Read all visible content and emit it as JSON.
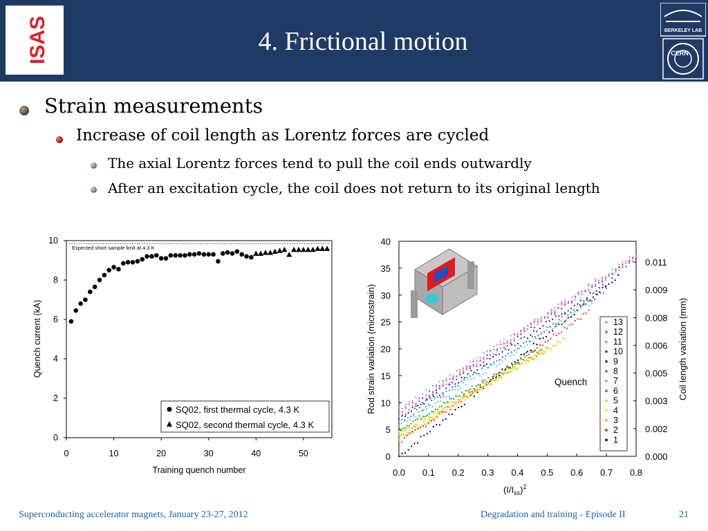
{
  "slide": {
    "title": "4. Frictional motion",
    "logo_left_text": "ISAS",
    "logo_top_text": "BERKELEY LAB",
    "logo_bottom_text": "CERN"
  },
  "bullets": {
    "l1": "Strain measurements",
    "l2": "Increase of coil length as Lorentz forces are cycled",
    "l3a": "The axial Lorentz forces tend to pull the coil ends outwardly",
    "l3b": "After an excitation cycle, the coil does not return to its original length"
  },
  "footer": {
    "left": "Superconducting accelerator magnets, January 23-27, 2012",
    "middle": "Degradation and training - Episode II",
    "page": "21"
  },
  "chart_data": [
    {
      "type": "scatter",
      "xlabel": "Training quench number",
      "ylabel": "Quench current (kA)",
      "xlim": [
        0,
        56
      ],
      "ylim": [
        0,
        10
      ],
      "xticks": [
        "0",
        "10",
        "20",
        "30",
        "40",
        "50"
      ],
      "yticks": [
        "0",
        "2",
        "4",
        "6",
        "8",
        "10"
      ],
      "reference_line": {
        "y": 9.85,
        "label": "Expected short sample limit at 4.3 K"
      },
      "legend_position": "bottom-right",
      "series": [
        {
          "name": "SQ02, first thermal cycle, 4.3 K",
          "marker": "circle",
          "x": [
            1,
            2,
            3,
            4,
            5,
            6,
            7,
            8,
            9,
            10,
            11,
            12,
            13,
            14,
            15,
            16,
            17,
            18,
            19,
            20,
            21,
            22,
            23,
            24,
            25,
            26,
            27,
            28,
            29,
            30,
            31,
            32,
            33,
            34,
            35,
            36,
            37,
            38,
            39
          ],
          "y": [
            5.9,
            6.45,
            6.8,
            7.0,
            7.4,
            7.65,
            8.0,
            8.25,
            8.5,
            8.65,
            8.55,
            8.85,
            8.9,
            8.9,
            8.95,
            9.05,
            9.2,
            9.2,
            9.25,
            9.1,
            9.1,
            9.25,
            9.25,
            9.25,
            9.25,
            9.3,
            9.3,
            9.35,
            9.3,
            9.3,
            9.3,
            8.95,
            9.35,
            9.4,
            9.35,
            9.45,
            9.3,
            9.2,
            9.15
          ]
        },
        {
          "name": "SQ02, second thermal cycle, 4.3 K",
          "marker": "triangle",
          "x": [
            40,
            41,
            42,
            43,
            44,
            45,
            46,
            47,
            48,
            49,
            50,
            51,
            52,
            53,
            54,
            55
          ],
          "y": [
            9.35,
            9.35,
            9.4,
            9.4,
            9.45,
            9.5,
            9.55,
            9.3,
            9.55,
            9.55,
            9.55,
            9.55,
            9.55,
            9.6,
            9.6,
            9.6
          ]
        }
      ]
    },
    {
      "type": "scatter",
      "xlabel": "(I/I",
      "xlabel_sub": "ss",
      "xlabel_close": ")",
      "xlabel_sup": "2",
      "ylabel": "Rod strain variation (microstrain)",
      "ylabel_right": "Coil length variation (mm)",
      "xlim": [
        0,
        0.8
      ],
      "ylim": [
        0,
        40
      ],
      "xticks": [
        "0.0",
        "0.1",
        "0.2",
        "0.3",
        "0.4",
        "0.5",
        "0.6",
        "0.7",
        "0.8"
      ],
      "yticks": [
        "0",
        "5",
        "10",
        "15",
        "20",
        "25",
        "30",
        "35",
        "40"
      ],
      "right_ticks": [
        "0.000",
        "0.002",
        "0.003",
        "0.005",
        "0.006",
        "0.008",
        "0.009",
        "0.011"
      ],
      "annotation": "Quench",
      "legend_position": "right",
      "series": [
        {
          "name": "1",
          "color": "#000000",
          "start": 0,
          "end": 0.74,
          "y_end": 33.5
        },
        {
          "name": "2",
          "color": "#e41a1c",
          "start": 2.5,
          "end": 0.64,
          "y_end": 27
        },
        {
          "name": "3",
          "color": "#f7a800",
          "start": 3.2,
          "end": 0.56,
          "y_end": 22
        },
        {
          "name": "4",
          "color": "#ffd700",
          "start": 3.8,
          "end": 0.52,
          "y_end": 20.5
        },
        {
          "name": "5",
          "color": "#c8d400",
          "start": 4.3,
          "end": 0.5,
          "y_end": 20
        },
        {
          "name": "6",
          "color": "#1a9b3a",
          "start": 5.0,
          "end": 0.48,
          "y_end": 20
        },
        {
          "name": "7",
          "color": "#4fc3e0",
          "start": 5.6,
          "end": 0.66,
          "y_end": 29
        },
        {
          "name": "8",
          "color": "#2678c8",
          "start": 6.2,
          "end": 0.7,
          "y_end": 31
        },
        {
          "name": "9",
          "color": "#1a237e",
          "start": 6.8,
          "end": 0.74,
          "y_end": 33.5
        },
        {
          "name": "10",
          "color": "#8e1a8e",
          "start": 7.3,
          "end": 0.8,
          "y_end": 37
        },
        {
          "name": "11",
          "color": "#e066e0",
          "start": 7.8,
          "end": 0.8,
          "y_end": 37
        },
        {
          "name": "12",
          "color": "#c040c0",
          "start": 8.2,
          "end": 0.8,
          "y_end": 37.2
        },
        {
          "name": "13",
          "color": "#9a9a9a",
          "start": 8.6,
          "end": 0.8,
          "y_end": 37.5
        }
      ]
    }
  ]
}
